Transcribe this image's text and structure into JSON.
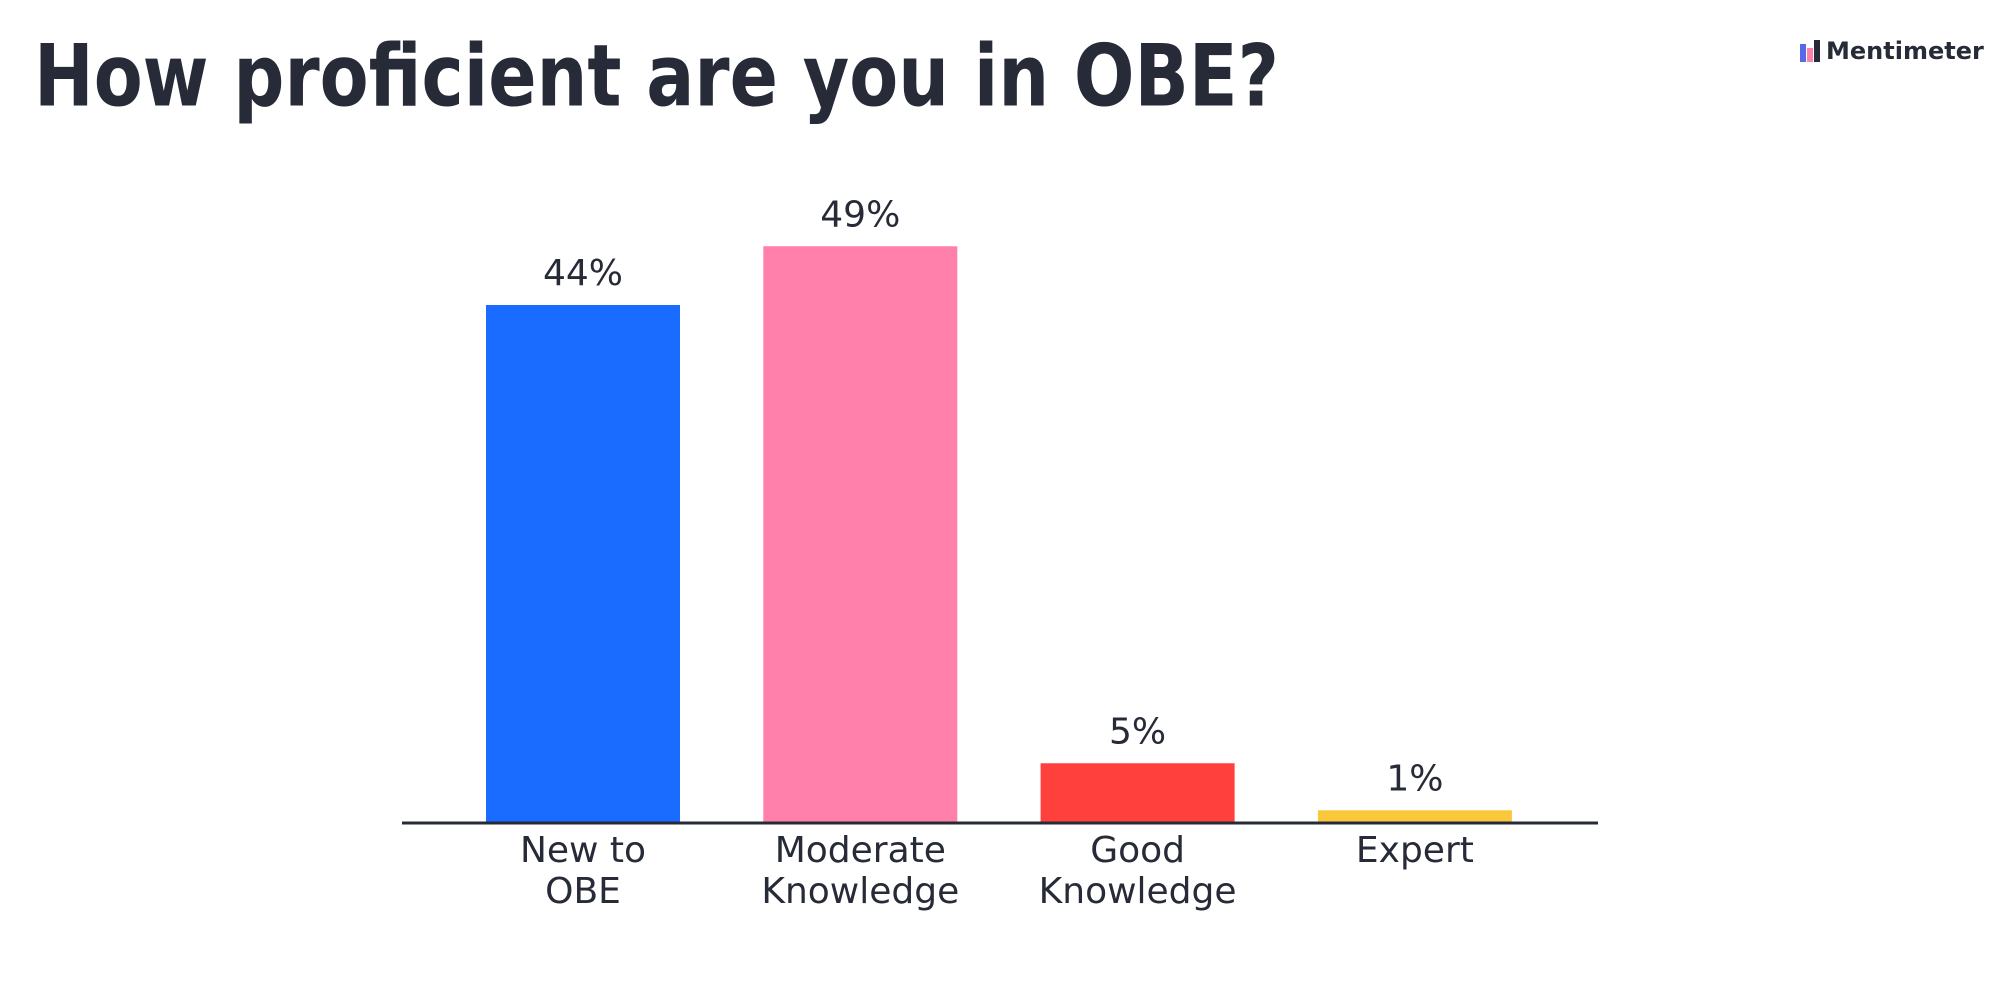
{
  "chart_data": {
    "type": "bar",
    "title": "How proficient are you in OBE?",
    "brand": "Mentimeter",
    "categories": [
      [
        "New to",
        "OBE"
      ],
      [
        "Moderate",
        "Knowledge"
      ],
      [
        "Good",
        "Knowledge"
      ],
      [
        "Expert"
      ]
    ],
    "values": [
      44,
      49,
      5,
      1
    ],
    "value_labels": [
      "44%",
      "49%",
      "5%",
      "1%"
    ],
    "colors": [
      "#196cff",
      "#ff80ab",
      "#ff403d",
      "#fbc73b"
    ]
  }
}
